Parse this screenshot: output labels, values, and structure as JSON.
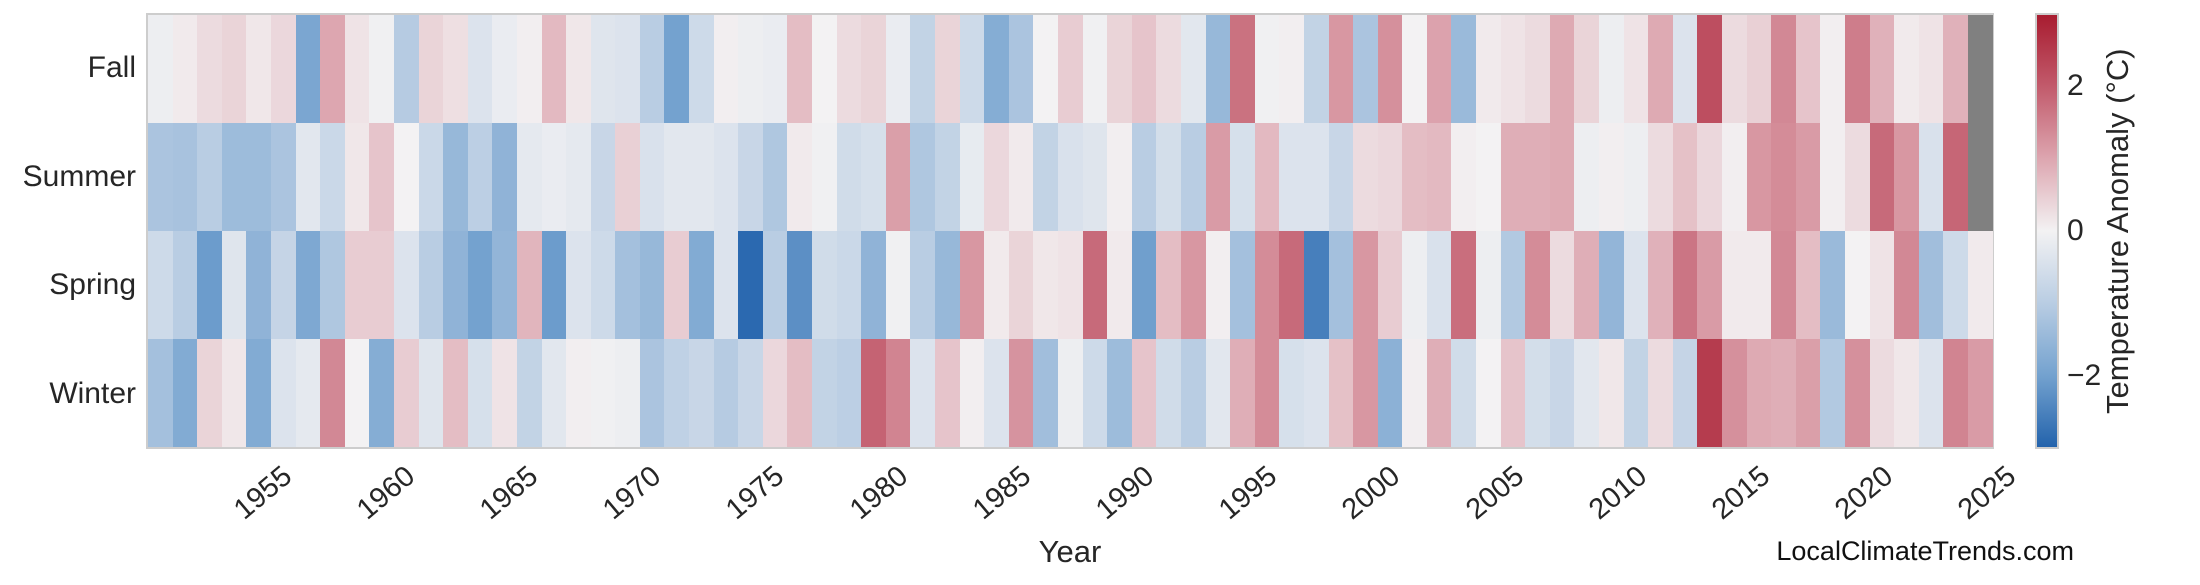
{
  "figure": {
    "watermark": "LocalClimateTrends.com"
  },
  "chart_data": {
    "type": "heatmap",
    "title": "",
    "xlabel": "Year",
    "row_labels": [
      "Fall",
      "Summer",
      "Spring",
      "Winter"
    ],
    "years_start": 1950,
    "years_end": 2024,
    "x_tick_years": [
      1955,
      1960,
      1965,
      1970,
      1975,
      1980,
      1985,
      1990,
      1995,
      2000,
      2005,
      2010,
      2015,
      2020,
      2025
    ],
    "x_tick_labels": [
      "1955",
      "1960",
      "1965",
      "1970",
      "1975",
      "1980",
      "1985",
      "1990",
      "1995",
      "2000",
      "2005",
      "2010",
      "2015",
      "2020",
      "2025"
    ],
    "value_units": "°C",
    "vmin": -3,
    "vmax": 3,
    "grid": false,
    "missing_value_color": "#808080",
    "missing_cells_note": "null = no data (gray): Fall and Summer of final year",
    "colormap_stops": [
      {
        "value": -3,
        "color": "#2363ac"
      },
      {
        "value": -2,
        "color": "#74a2cf"
      },
      {
        "value": -1,
        "color": "#b9cde3"
      },
      {
        "value": 0,
        "color": "#f3f2f3"
      },
      {
        "value": 1,
        "color": "#dda6b0"
      },
      {
        "value": 2,
        "color": "#c25b6c"
      },
      {
        "value": 3,
        "color": "#a81c30"
      }
    ],
    "colorbar": {
      "label": "Temperature Anomaly (°C)",
      "tick_values": [
        2,
        0,
        -2
      ],
      "tick_labels": [
        "2",
        "0",
        "−2"
      ],
      "position": "right"
    },
    "series": [
      {
        "name": "Fall",
        "values": [
          -0.1,
          0.1,
          0.3,
          0.4,
          0.15,
          0.35,
          -1.9,
          1.0,
          0.2,
          -0.05,
          -1.05,
          0.4,
          0.25,
          -0.4,
          -0.15,
          0.05,
          0.75,
          0.15,
          -0.35,
          -0.4,
          -1.0,
          -2.0,
          -0.65,
          0.05,
          -0.1,
          -0.15,
          0.7,
          0.0,
          0.3,
          0.4,
          -0.15,
          -0.85,
          0.4,
          -0.65,
          -1.75,
          -1.2,
          0.0,
          0.5,
          -0.05,
          0.4,
          0.6,
          0.3,
          -0.3,
          -1.5,
          1.7,
          -0.05,
          0.05,
          -0.85,
          1.2,
          -1.2,
          1.3,
          0.0,
          1.05,
          -1.45,
          0.1,
          0.2,
          0.3,
          0.95,
          0.4,
          -0.1,
          0.2,
          0.95,
          -0.4,
          2.2,
          0.3,
          0.45,
          1.4,
          0.6,
          0.05,
          1.55,
          0.85,
          0.1,
          0.2,
          0.85,
          null
        ]
      },
      {
        "name": "Summer",
        "values": [
          -1.2,
          -1.25,
          -1.0,
          -1.4,
          -1.4,
          -1.2,
          -0.3,
          -0.7,
          0.15,
          0.6,
          0.0,
          -0.7,
          -1.5,
          -0.95,
          -1.6,
          -0.25,
          -0.15,
          -0.25,
          -0.75,
          0.45,
          -0.45,
          -0.3,
          -0.3,
          -0.4,
          -0.75,
          -1.15,
          0.1,
          -0.05,
          -0.6,
          -0.5,
          1.1,
          -1.15,
          -0.85,
          -0.2,
          0.35,
          0.1,
          -0.85,
          -0.45,
          -0.35,
          0.05,
          -1.0,
          -0.55,
          -1.0,
          1.15,
          -0.5,
          0.75,
          -0.4,
          -0.4,
          -0.75,
          0.3,
          0.35,
          0.7,
          0.75,
          0.05,
          0.0,
          0.9,
          0.9,
          0.95,
          -0.1,
          0.05,
          -0.1,
          0.3,
          0.65,
          0.35,
          0.05,
          1.2,
          1.35,
          1.15,
          0.05,
          0.3,
          1.8,
          1.2,
          -0.45,
          1.85,
          null
        ]
      },
      {
        "name": "Spring",
        "values": [
          -0.65,
          -1.0,
          -2.1,
          -0.35,
          -1.6,
          -0.8,
          -1.85,
          -1.15,
          0.5,
          0.5,
          -0.4,
          -1.0,
          -1.6,
          -2.0,
          -1.55,
          0.8,
          -2.1,
          -0.4,
          -0.65,
          -1.3,
          -1.5,
          0.5,
          -1.8,
          -0.4,
          -2.9,
          -1.0,
          -2.3,
          -0.6,
          -0.7,
          -1.6,
          -0.05,
          -1.0,
          -1.5,
          1.2,
          0.1,
          0.4,
          0.15,
          0.2,
          1.8,
          0.1,
          -2.05,
          0.7,
          1.2,
          0.05,
          -1.3,
          1.35,
          1.8,
          -2.55,
          -1.3,
          1.2,
          0.5,
          -0.1,
          -0.45,
          1.75,
          -0.1,
          -1.1,
          1.35,
          0.3,
          0.9,
          -1.55,
          -0.4,
          0.85,
          1.65,
          1.15,
          0.1,
          0.1,
          1.4,
          0.7,
          -1.45,
          0.0,
          0.2,
          1.4,
          -1.35,
          -0.65,
          0.1
        ]
      },
      {
        "name": "Winter",
        "values": [
          -1.3,
          -1.8,
          0.4,
          0.15,
          -1.8,
          -0.4,
          -0.25,
          1.4,
          0.0,
          -1.75,
          0.5,
          -0.35,
          0.7,
          -0.5,
          0.2,
          -0.85,
          -0.3,
          0.05,
          -0.05,
          -0.1,
          -1.2,
          -0.9,
          -0.75,
          -1.05,
          -0.75,
          0.35,
          0.7,
          -0.85,
          -0.95,
          1.9,
          1.45,
          -0.4,
          0.6,
          0.05,
          -0.4,
          1.25,
          -1.35,
          -0.1,
          -0.65,
          -1.4,
          0.6,
          -0.6,
          -1.0,
          -0.3,
          0.9,
          1.35,
          -0.5,
          -0.4,
          0.65,
          1.2,
          -1.65,
          0.05,
          0.9,
          -0.6,
          0.0,
          0.6,
          -0.55,
          -0.75,
          -0.3,
          0.15,
          -0.85,
          0.3,
          -0.8,
          2.5,
          1.3,
          0.95,
          0.9,
          1.1,
          -1.1,
          1.3,
          0.3,
          0.15,
          -0.4,
          1.45,
          1.15
        ]
      }
    ]
  }
}
